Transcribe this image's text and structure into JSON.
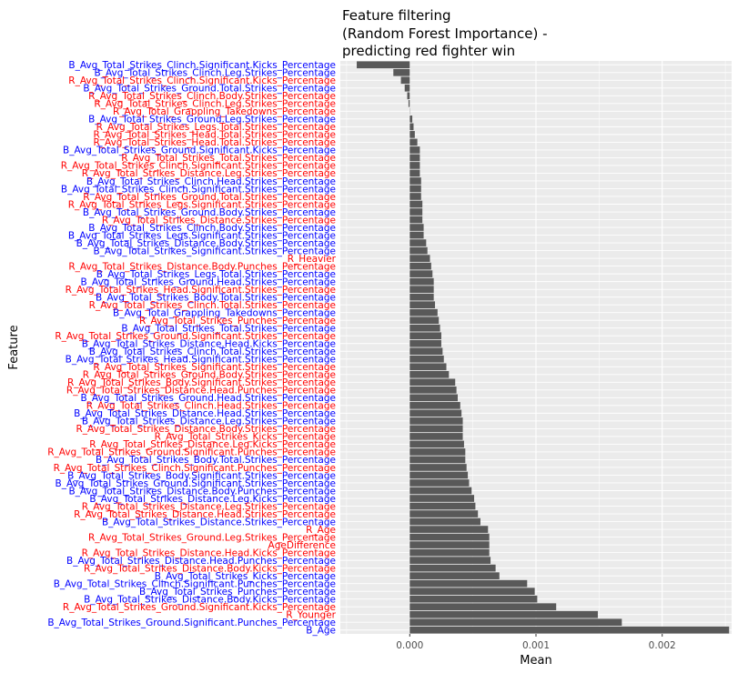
{
  "chart_data": {
    "type": "bar",
    "orientation": "horizontal",
    "title": [
      "Feature filtering",
      "(Random Forest Importance) -",
      "predicting red fighter win"
    ],
    "xlabel": "Mean",
    "ylabel": "Feature",
    "xlim": [
      -0.00055,
      0.00255
    ],
    "xticks": [
      0.0,
      0.001,
      0.002
    ],
    "xtick_labels": [
      "0.000",
      "0.001",
      "0.002"
    ],
    "grid": true,
    "colors": {
      "bar": "#595959",
      "panel": "#ebebeb",
      "grid": "#ffffff",
      "blue": "#0000ff",
      "red": "#ff0000"
    },
    "bars": [
      {
        "label": "B_Avg_Total_Strikes_Clinch.Significant.Kicks_Percentage",
        "value": -0.00042,
        "color": "blue"
      },
      {
        "label": "B_Avg_Total_Strikes_Clinch.Leg.Strikes_Percentage",
        "value": -0.00013,
        "color": "blue"
      },
      {
        "label": "R_Avg_Total_Strikes_Clinch.Significant.Kicks_Percentage",
        "value": -7e-05,
        "color": "red"
      },
      {
        "label": "B_Avg_Total_Strikes_Ground.Total.Strikes_Percentage",
        "value": -4e-05,
        "color": "blue"
      },
      {
        "label": "R_Avg_Total_Strikes_Clinch.Body.Strikes_Percentage",
        "value": -2e-05,
        "color": "red"
      },
      {
        "label": "R_Avg_Total_Strikes_Clinch.Leg.Strikes_Percentage",
        "value": -1e-05,
        "color": "red"
      },
      {
        "label": "R_Avg_Total_Grappling_Takedowns_Percentage",
        "value": 0.0,
        "color": "red"
      },
      {
        "label": "B_Avg_Total_Strikes_Ground.Leg.Strikes_Percentage",
        "value": 2e-05,
        "color": "blue"
      },
      {
        "label": "R_Avg_Total_Strikes_Legs.Total.Strikes_Percentage",
        "value": 3e-05,
        "color": "red"
      },
      {
        "label": "R_Avg_Total_Strikes_Head.Total.Strikes_Percentage",
        "value": 4e-05,
        "color": "red"
      },
      {
        "label": "R_Avg_Total_Strikes_Head.Total.Strikes_Percentage",
        "value": 6e-05,
        "color": "red"
      },
      {
        "label": "B_Avg_Total_Strikes_Ground.Significant.Kicks_Percentage",
        "value": 8e-05,
        "color": "blue"
      },
      {
        "label": "R_Avg_Total_Strikes_Total.Strikes_Percentage",
        "value": 8e-05,
        "color": "red"
      },
      {
        "label": "R_Avg_Total_Strikes_Clinch.Significant.Strikes_Percentage",
        "value": 8e-05,
        "color": "red"
      },
      {
        "label": "R_Avg_Total_Strikes_Distance.Leg.Strikes_Percentage",
        "value": 8e-05,
        "color": "red"
      },
      {
        "label": "B_Avg_Total_Strikes_Clinch.Head.Strikes_Percentage",
        "value": 9e-05,
        "color": "blue"
      },
      {
        "label": "B_Avg_Total_Strikes_Clinch.Significant.Strikes_Percentage",
        "value": 9e-05,
        "color": "blue"
      },
      {
        "label": "R_Avg_Total_Strikes_Ground.Total.Strikes_Percentage",
        "value": 9e-05,
        "color": "red"
      },
      {
        "label": "R_Avg_Total_Strikes_Legs.Significant.Strikes_Percentage",
        "value": 0.0001,
        "color": "red"
      },
      {
        "label": "B_Avg_Total_Strikes_Ground.Body.Strikes_Percentage",
        "value": 0.0001,
        "color": "blue"
      },
      {
        "label": "R_Avg_Total_Strikes_Distance.Strikes_Percentage",
        "value": 0.0001,
        "color": "red"
      },
      {
        "label": "B_Avg_Total_Strikes_Clinch.Body.Strikes_Percentage",
        "value": 0.00011,
        "color": "blue"
      },
      {
        "label": "B_Avg_Total_Strikes_Legs.Significant.Strikes_Percentage",
        "value": 0.00011,
        "color": "blue"
      },
      {
        "label": "B_Avg_Total_Strikes_Distance.Body.Strikes_Percentage",
        "value": 0.00013,
        "color": "blue"
      },
      {
        "label": "B_Avg_Total_Strikes_Significant.Strikes_Percentage",
        "value": 0.00014,
        "color": "blue"
      },
      {
        "label": "R_Heavier",
        "value": 0.00016,
        "color": "red"
      },
      {
        "label": "R_Avg_Total_Strikes_Distance.Body.Punches_Percentage",
        "value": 0.00017,
        "color": "red"
      },
      {
        "label": "B_Avg_Total_Strikes_Legs.Total.Strikes_Percentage",
        "value": 0.00018,
        "color": "blue"
      },
      {
        "label": "B_Avg_Total_Strikes_Ground.Head.Strikes_Percentage",
        "value": 0.00019,
        "color": "blue"
      },
      {
        "label": "R_Avg_Total_Strikes_Head.Significant.Strikes_Percentage",
        "value": 0.00019,
        "color": "red"
      },
      {
        "label": "B_Avg_Total_Strikes_Body.Total.Strikes_Percentage",
        "value": 0.00019,
        "color": "blue"
      },
      {
        "label": "R_Avg_Total_Strikes_Clinch.Total.Strikes_Percentage",
        "value": 0.0002,
        "color": "red"
      },
      {
        "label": "B_Avg_Total_Grappling_Takedowns_Percentage",
        "value": 0.00022,
        "color": "blue"
      },
      {
        "label": "R_Avg_Total_Strikes_Punches_Percentage",
        "value": 0.00023,
        "color": "red"
      },
      {
        "label": "B_Avg_Total_Strikes_Total.Strikes_Percentage",
        "value": 0.00024,
        "color": "blue"
      },
      {
        "label": "R_Avg_Total_Strikes_Ground.Significant.Strikes_Percentage",
        "value": 0.00025,
        "color": "red"
      },
      {
        "label": "B_Avg_Total_Strikes_Distance.Head.Kicks_Percentage",
        "value": 0.00025,
        "color": "blue"
      },
      {
        "label": "B_Avg_Total_Strikes_Clinch.Total.Strikes_Percentage",
        "value": 0.00026,
        "color": "blue"
      },
      {
        "label": "B_Avg_Total_Strikes_Head.Significant.Strikes_Percentage",
        "value": 0.00027,
        "color": "blue"
      },
      {
        "label": "R_Avg_Total_Strikes_Significant.Strikes_Percentage",
        "value": 0.00029,
        "color": "red"
      },
      {
        "label": "R_Avg_Total_Strikes_Ground.Body.Strikes_Percentage",
        "value": 0.00031,
        "color": "red"
      },
      {
        "label": "R_Avg_Total_Strikes_Body.Significant.Strikes_Percentage",
        "value": 0.00036,
        "color": "red"
      },
      {
        "label": "R_Avg_Total_Strikes_Distance.Head.Punches_Percentage",
        "value": 0.00037,
        "color": "red"
      },
      {
        "label": "B_Avg_Total_Strikes_Ground.Head.Strikes_Percentage",
        "value": 0.00038,
        "color": "blue"
      },
      {
        "label": "R_Avg_Total_Strikes_Clinch.Head.Strikes_Percentage",
        "value": 0.0004,
        "color": "red"
      },
      {
        "label": "B_Avg_Total_Strikes_Distance.Head.Strikes_Percentage",
        "value": 0.00041,
        "color": "blue"
      },
      {
        "label": "B_Avg_Total_Strikes_Distance.Leg.Strikes_Percentage",
        "value": 0.00042,
        "color": "blue"
      },
      {
        "label": "R_Avg_Total_Strikes_Distance.Body.Strikes_Percentage",
        "value": 0.00042,
        "color": "red"
      },
      {
        "label": "R_Avg_Total_Strikes_Kicks_Percentage",
        "value": 0.00042,
        "color": "red"
      },
      {
        "label": "R_Avg_Total_Strikes_Distance.Leg.Kicks_Percentage",
        "value": 0.00043,
        "color": "red"
      },
      {
        "label": "R_Avg_Total_Strikes_Ground.Significant.Punches_Percentage",
        "value": 0.00044,
        "color": "red"
      },
      {
        "label": "B_Avg_Total_Strikes_Body.Total.Strikes_Percentage",
        "value": 0.00044,
        "color": "blue"
      },
      {
        "label": "R_Avg_Total_Strikes_Clinch.Significant.Punches_Percentage",
        "value": 0.00045,
        "color": "red"
      },
      {
        "label": "B_Avg_Total_Strikes_Body.Significant.Strikes_Percentage",
        "value": 0.00046,
        "color": "blue"
      },
      {
        "label": "B_Avg_Total_Strikes_Ground.Significant.Strikes_Percentage",
        "value": 0.00047,
        "color": "blue"
      },
      {
        "label": "B_Avg_Total_Strikes_Distance.Body.Punches_Percentage",
        "value": 0.00049,
        "color": "blue"
      },
      {
        "label": "B_Avg_Total_Strikes_Distance.Leg.Kicks_Percentage",
        "value": 0.00051,
        "color": "blue"
      },
      {
        "label": "R_Avg_Total_Strikes_Distance.Leg.Strikes_Percentage",
        "value": 0.00052,
        "color": "red"
      },
      {
        "label": "R_Avg_Total_Strikes_Distance.Head.Strikes_Percentage",
        "value": 0.00054,
        "color": "red"
      },
      {
        "label": "B_Avg_Total_Strikes_Distance.Strikes_Percentage",
        "value": 0.00056,
        "color": "blue"
      },
      {
        "label": "R_Age",
        "value": 0.00062,
        "color": "red"
      },
      {
        "label": "R_Avg_Total_Strikes_Ground.Leg.Strikes_Percentage",
        "value": 0.00063,
        "color": "red"
      },
      {
        "label": "AgeDifference",
        "value": 0.00063,
        "color": "red"
      },
      {
        "label": "R_Avg_Total_Strikes_Distance.Head.Kicks_Percentage",
        "value": 0.00063,
        "color": "red"
      },
      {
        "label": "B_Avg_Total_Strikes_Distance.Head.Punches_Percentage",
        "value": 0.00064,
        "color": "blue"
      },
      {
        "label": "R_Avg_Total_Strikes_Distance.Body.Kicks_Percentage",
        "value": 0.00068,
        "color": "red"
      },
      {
        "label": "B_Avg_Total_Strikes_Kicks_Percentage",
        "value": 0.00071,
        "color": "blue"
      },
      {
        "label": "B_Avg_Total_Strikes_Clinch.Significant.Punches_Percentage",
        "value": 0.00093,
        "color": "blue"
      },
      {
        "label": "B_Avg_Total_Strikes_Punches_Percentage",
        "value": 0.00099,
        "color": "blue"
      },
      {
        "label": "B_Avg_Total_Strikes_Distance.Body.Kicks_Percentage",
        "value": 0.00101,
        "color": "blue"
      },
      {
        "label": "R_Avg_Total_Strikes_Ground.Significant.Kicks_Percentage",
        "value": 0.00116,
        "color": "red"
      },
      {
        "label": "R_Younger",
        "value": 0.00149,
        "color": "red"
      },
      {
        "label": "B_Avg_Total_Strikes_Ground.Significant.Punches_Percentage",
        "value": 0.00168,
        "color": "blue"
      },
      {
        "label": "B_Age",
        "value": 0.00253,
        "color": "blue"
      }
    ]
  }
}
